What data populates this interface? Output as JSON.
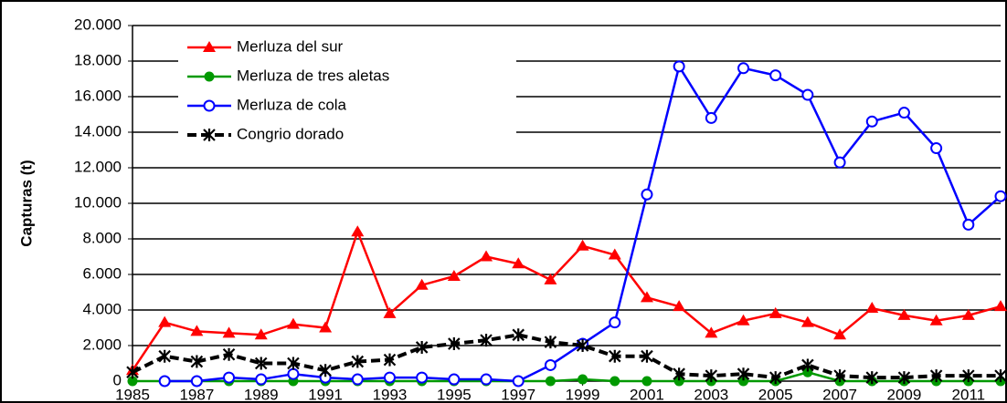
{
  "chart_data": {
    "type": "line",
    "y_label": "Capturas (t)",
    "x": [
      1985,
      1986,
      1987,
      1988,
      1989,
      1990,
      1991,
      1992,
      1993,
      1994,
      1995,
      1996,
      1997,
      1998,
      1999,
      2000,
      2001,
      2002,
      2003,
      2004,
      2005,
      2006,
      2007,
      2008,
      2009,
      2010,
      2011,
      2012
    ],
    "series": [
      {
        "name": "Merluza del sur",
        "color": "#ff0000",
        "marker": "triangle",
        "values": [
          600,
          3300,
          2800,
          2700,
          2600,
          3200,
          3000,
          8400,
          3800,
          5400,
          5900,
          7000,
          6600,
          5700,
          7600,
          7100,
          4700,
          4200,
          2700,
          3400,
          3800,
          3300,
          2600,
          4100,
          3700,
          3400,
          3700,
          4200
        ]
      },
      {
        "name": "Merluza de tres aletas",
        "color": "#009900",
        "marker": "filled-circle",
        "values": [
          0,
          0,
          0,
          0,
          0,
          0,
          0,
          0,
          0,
          0,
          0,
          0,
          0,
          0,
          100,
          0,
          0,
          0,
          0,
          0,
          0,
          500,
          0,
          0,
          0,
          0,
          0,
          0
        ]
      },
      {
        "name": "Merluza de cola",
        "color": "#0000ff",
        "marker": "open-circle",
        "values": [
          null,
          0,
          0,
          200,
          100,
          400,
          200,
          100,
          200,
          200,
          100,
          100,
          0,
          900,
          2100,
          3300,
          10500,
          17700,
          14800,
          17600,
          17200,
          16100,
          12300,
          14600,
          15100,
          13100,
          8800,
          10400
        ]
      },
      {
        "name": "Congrio dorado",
        "color": "#000000",
        "marker": "asterisk",
        "dashed": true,
        "values": [
          500,
          1400,
          1100,
          1500,
          1000,
          1000,
          600,
          1100,
          1200,
          1900,
          2100,
          2300,
          2600,
          2200,
          2000,
          1400,
          1400,
          400,
          300,
          400,
          200,
          900,
          300,
          200,
          200,
          300,
          300,
          300
        ]
      }
    ],
    "xlim": [
      1985,
      2012
    ],
    "xticks": [
      1985,
      1987,
      1989,
      1991,
      1993,
      1995,
      1997,
      1999,
      2001,
      2003,
      2005,
      2007,
      2009,
      2011
    ],
    "ylim": [
      0,
      20000
    ],
    "yticks": [
      0,
      {
        "value": 2000,
        "label": "2.000"
      },
      {
        "value": 4000,
        "label": "4.000"
      },
      {
        "value": 6000,
        "label": "6.000"
      },
      {
        "value": 8000,
        "label": "8.000"
      },
      {
        "value": 10000,
        "label": "10.000"
      },
      {
        "value": 12000,
        "label": "12.000"
      },
      {
        "value": 14000,
        "label": "14.000"
      },
      {
        "value": 16000,
        "label": "16.000"
      },
      {
        "value": 18000,
        "label": "18.000"
      },
      {
        "value": 20000,
        "label": "20.000"
      }
    ],
    "grid": true,
    "legend": "upper-left"
  }
}
